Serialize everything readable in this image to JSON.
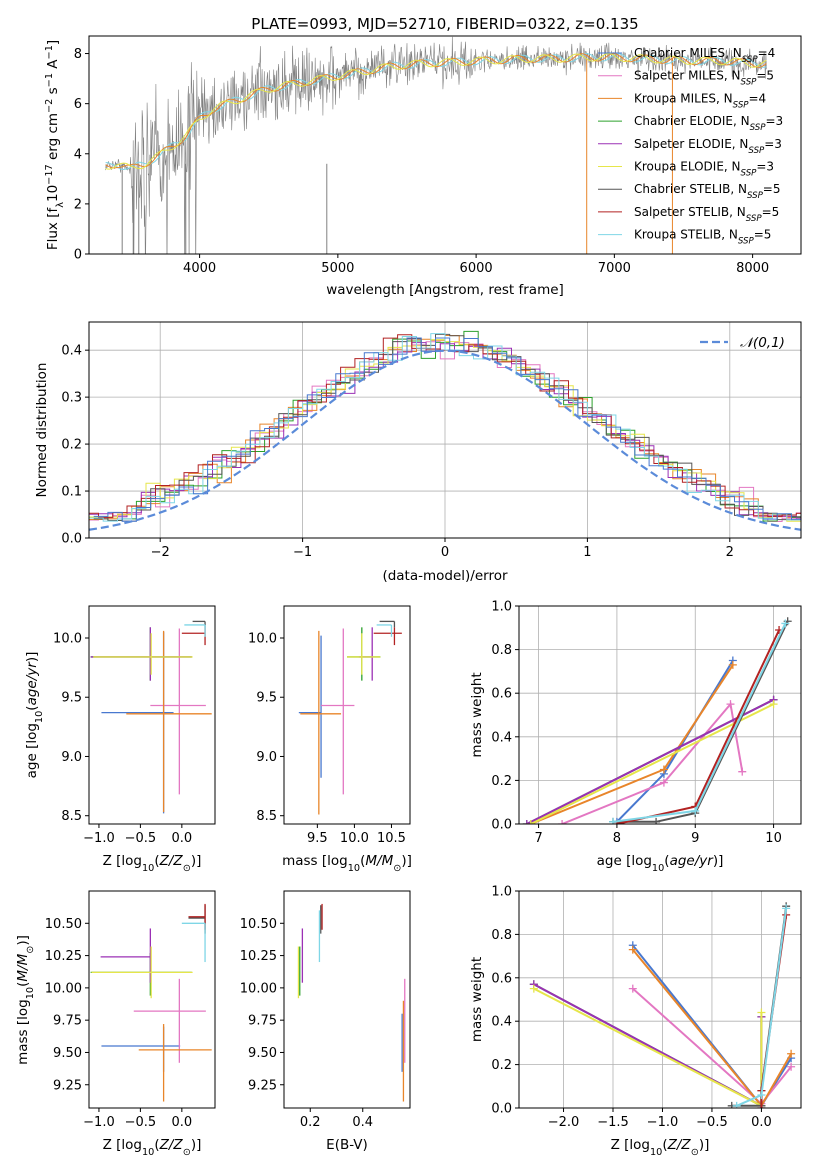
{
  "chart_data": [
    {
      "id": "spectrum",
      "type": "line",
      "title": "PLATE=0993, MJD=52710, FIBERID=0322, z=0.135",
      "xlabel": "wavelength [Angstrom, rest frame]",
      "ylabel": "Flux [f_λ10^-17 erg cm^-2 s^-1 A^-1]",
      "xlim": [
        3200,
        8350
      ],
      "ylim": [
        0,
        8.7
      ],
      "xticks": [
        4000,
        5000,
        6000,
        7000,
        8000
      ],
      "yticks": [
        0,
        2,
        4,
        6,
        8
      ],
      "observed": {
        "x": [
          3320,
          3400,
          3500,
          3600,
          3700,
          3800,
          3900,
          4000,
          4100,
          4200,
          4300,
          4400,
          4500,
          4600,
          4700,
          4800,
          4900,
          5000,
          5200,
          5400,
          5600,
          5800,
          6000,
          6200,
          6400,
          6600,
          6800,
          7000,
          7200,
          7400,
          7600,
          7800,
          8000,
          8100
        ],
        "y": [
          3.5,
          3.6,
          3.4,
          3.6,
          3.9,
          4.3,
          4.7,
          5.4,
          5.8,
          6.0,
          6.2,
          6.4,
          6.6,
          6.7,
          6.8,
          6.9,
          7.0,
          7.1,
          7.3,
          7.5,
          7.6,
          7.65,
          7.7,
          7.75,
          7.8,
          7.8,
          7.85,
          7.85,
          7.8,
          7.75,
          7.7,
          7.7,
          7.6,
          7.6
        ]
      },
      "series": [
        {
          "name": "Chabrier MILES, N_SSP=4",
          "color": "#4878cf"
        },
        {
          "name": "Salpeter MILES, N_SSP=5",
          "color": "#e377c2"
        },
        {
          "name": "Kroupa MILES, N_SSP=4",
          "color": "#e8852a"
        },
        {
          "name": "Chabrier ELODIE, N_SSP=3",
          "color": "#2ca02c"
        },
        {
          "name": "Salpeter ELODIE, N_SSP=3",
          "color": "#9b30b5"
        },
        {
          "name": "Kroupa ELODIE, N_SSP=3",
          "color": "#e6e64a"
        },
        {
          "name": "Chabrier STELIB, N_SSP=5",
          "color": "#555555"
        },
        {
          "name": "Salpeter STELIB, N_SSP=5",
          "color": "#b22222"
        },
        {
          "name": "Kroupa STELIB, N_SSP=5",
          "color": "#7fd6e6"
        }
      ],
      "legend_position": "right"
    },
    {
      "id": "residuals",
      "type": "histogram",
      "xlabel": "(data-model)/error",
      "ylabel": "Normed distribution",
      "xlim": [
        -2.5,
        2.5
      ],
      "ylim": [
        0,
        0.46
      ],
      "xticks": [
        -2,
        -1,
        0,
        1,
        2
      ],
      "yticks": [
        0.0,
        0.1,
        0.2,
        0.3,
        0.4
      ],
      "bin_width": 0.1,
      "curve_label": "𝒩(0,1)",
      "curve_color": "#5b8bd9",
      "legend_position": "top-right",
      "grid": true
    },
    {
      "id": "age-vs-Z",
      "type": "errorbar",
      "xlabel": "Z [log10(Z/Z⊙)]",
      "ylabel": "age  [log10(age/yr)]",
      "xlim": [
        -1.12,
        0.4
      ],
      "ylim": [
        8.43,
        10.27
      ],
      "xticks": [
        -1.0,
        -0.5,
        0.0
      ],
      "yticks": [
        8.5,
        9.0,
        9.5,
        10.0
      ],
      "points": [
        {
          "x": -0.22,
          "y": 9.37,
          "xerr": [
            0.75,
            0.12
          ],
          "yerr": [
            0.85,
            0.68
          ],
          "c": 0
        },
        {
          "x": -0.03,
          "y": 9.43,
          "xerr": [
            0.35,
            0.32
          ],
          "yerr": [
            0.75,
            0.65
          ],
          "c": 1
        },
        {
          "x": -0.22,
          "y": 9.36,
          "xerr": [
            0.45,
            0.58
          ],
          "yerr": [
            0.83,
            0.7
          ],
          "c": 2
        },
        {
          "x": -0.38,
          "y": 9.84,
          "xerr": [
            0.72,
            0.5
          ],
          "yerr": [
            0.2,
            0.25
          ],
          "c": 3
        },
        {
          "x": -0.38,
          "y": 9.84,
          "xerr": [
            0.72,
            0.5
          ],
          "yerr": [
            0.2,
            0.25
          ],
          "c": 4
        },
        {
          "x": -0.37,
          "y": 9.84,
          "xerr": [
            0.7,
            0.5
          ],
          "yerr": [
            0.15,
            0.2
          ],
          "c": 5
        },
        {
          "x": 0.28,
          "y": 10.14,
          "xerr": [
            0.15,
            0.0
          ],
          "yerr": [
            0.05,
            0.0
          ],
          "c": 6
        },
        {
          "x": 0.28,
          "y": 10.04,
          "xerr": [
            0.28,
            0.0
          ],
          "yerr": [
            0.1,
            0.05
          ],
          "c": 7
        },
        {
          "x": 0.28,
          "y": 10.11,
          "xerr": [
            0.25,
            0.0
          ],
          "yerr": [
            0.1,
            0.0
          ],
          "c": 8
        }
      ]
    },
    {
      "id": "age-vs-mass",
      "type": "errorbar",
      "xlabel": "mass [log10(M/M⊙)]",
      "ylabel": "",
      "xlim": [
        9.05,
        10.75
      ],
      "ylim": [
        8.43,
        10.27
      ],
      "xticks": [
        9.5,
        10.0,
        10.5
      ],
      "yticks": [
        8.5,
        9.0,
        9.5,
        10.0
      ],
      "points": [
        {
          "x": 9.55,
          "y": 9.37,
          "xerr": [
            0.3,
            0.0
          ],
          "yerr": [
            0.55,
            0.65
          ],
          "c": 0
        },
        {
          "x": 9.85,
          "y": 9.43,
          "xerr": [
            0.3,
            0.15
          ],
          "yerr": [
            0.75,
            0.65
          ],
          "c": 1
        },
        {
          "x": 9.52,
          "y": 9.36,
          "xerr": [
            0.25,
            0.3
          ],
          "yerr": [
            0.85,
            0.7
          ],
          "c": 2
        },
        {
          "x": 10.1,
          "y": 9.84,
          "xerr": [
            0.2,
            0.25
          ],
          "yerr": [
            0.2,
            0.25
          ],
          "c": 3
        },
        {
          "x": 10.24,
          "y": 9.84,
          "xerr": [
            0.18,
            0.0
          ],
          "yerr": [
            0.2,
            0.25
          ],
          "c": 4
        },
        {
          "x": 10.1,
          "y": 9.84,
          "xerr": [
            0.2,
            0.25
          ],
          "yerr": [
            0.15,
            0.2
          ],
          "c": 5
        },
        {
          "x": 10.54,
          "y": 10.14,
          "xerr": [
            0.2,
            0.0
          ],
          "yerr": [
            0.05,
            0.0
          ],
          "c": 6
        },
        {
          "x": 10.54,
          "y": 10.04,
          "xerr": [
            0.28,
            0.1
          ],
          "yerr": [
            0.1,
            0.05
          ],
          "c": 7
        },
        {
          "x": 10.5,
          "y": 10.11,
          "xerr": [
            0.2,
            0.0
          ],
          "yerr": [
            0.1,
            0.0
          ],
          "c": 8
        }
      ]
    },
    {
      "id": "weight-vs-age",
      "type": "line",
      "xlabel": "age  [log10(age/yr)]",
      "ylabel": "mass weight",
      "xlim": [
        6.75,
        10.35
      ],
      "ylim": [
        0,
        1.0
      ],
      "xticks": [
        7,
        8,
        9,
        10
      ],
      "yticks": [
        0.0,
        0.2,
        0.4,
        0.6,
        0.8,
        1.0
      ],
      "grid": true,
      "series": [
        {
          "c": 0,
          "x": [
            8.0,
            8.6,
            9.48
          ],
          "y": [
            0.01,
            0.23,
            0.75
          ]
        },
        {
          "c": 1,
          "x": [
            7.3,
            8.6,
            9.45,
            9.6
          ],
          "y": [
            0.0,
            0.19,
            0.55,
            0.24
          ]
        },
        {
          "c": 2,
          "x": [
            6.9,
            8.6,
            9.48
          ],
          "y": [
            0.0,
            0.25,
            0.73
          ]
        },
        {
          "c": 3,
          "x": [
            6.85,
            10.0
          ],
          "y": [
            0.0,
            0.57
          ]
        },
        {
          "c": 4,
          "x": [
            6.85,
            10.0
          ],
          "y": [
            0.0,
            0.57
          ]
        },
        {
          "c": 5,
          "x": [
            6.9,
            10.0
          ],
          "y": [
            0.0,
            0.55
          ]
        },
        {
          "c": 6,
          "x": [
            7.95,
            8.5,
            9.0,
            10.18
          ],
          "y": [
            0.01,
            0.01,
            0.05,
            0.93
          ]
        },
        {
          "c": 7,
          "x": [
            8.0,
            9.0,
            10.07
          ],
          "y": [
            0.0,
            0.08,
            0.89
          ]
        },
        {
          "c": 8,
          "x": [
            7.95,
            9.0,
            10.15
          ],
          "y": [
            0.01,
            0.06,
            0.92
          ]
        }
      ]
    },
    {
      "id": "mass-vs-Z",
      "type": "errorbar",
      "xlabel": "Z [log10(Z/Z⊙)]",
      "ylabel": "mass [log10(M/M⊙)]",
      "xlim": [
        -1.12,
        0.4
      ],
      "ylim": [
        9.07,
        10.75
      ],
      "xticks": [
        -1.0,
        -0.5,
        0.0
      ],
      "yticks": [
        9.25,
        9.5,
        9.75,
        10.0,
        10.25,
        10.5
      ],
      "points": [
        {
          "x": -0.22,
          "y": 9.55,
          "xerr": [
            0.75,
            0.2
          ],
          "yerr": [
            0.2,
            0.15
          ],
          "c": 0
        },
        {
          "x": -0.03,
          "y": 9.82,
          "xerr": [
            0.55,
            0.32
          ],
          "yerr": [
            0.4,
            0.25
          ],
          "c": 1
        },
        {
          "x": -0.22,
          "y": 9.52,
          "xerr": [
            0.3,
            0.58
          ],
          "yerr": [
            0.4,
            0.2
          ],
          "c": 2
        },
        {
          "x": -0.38,
          "y": 10.12,
          "xerr": [
            0.72,
            0.5
          ],
          "yerr": [
            0.18,
            0.15
          ],
          "c": 3
        },
        {
          "x": -0.38,
          "y": 10.24,
          "xerr": [
            0.6,
            0.0
          ],
          "yerr": [
            0.2,
            0.22
          ],
          "c": 4
        },
        {
          "x": -0.37,
          "y": 10.12,
          "xerr": [
            0.72,
            0.5
          ],
          "yerr": [
            0.2,
            0.2
          ],
          "c": 5
        },
        {
          "x": 0.28,
          "y": 10.54,
          "xerr": [
            0.2,
            0.0
          ],
          "yerr": [
            0.12,
            0.1
          ],
          "c": 6
        },
        {
          "x": 0.28,
          "y": 10.55,
          "xerr": [
            0.2,
            0.0
          ],
          "yerr": [
            0.1,
            0.1
          ],
          "c": 7
        },
        {
          "x": 0.28,
          "y": 10.5,
          "xerr": [
            0.28,
            0.0
          ],
          "yerr": [
            0.3,
            0.0
          ],
          "c": 8
        }
      ]
    },
    {
      "id": "mass-vs-EBV",
      "type": "errorbar",
      "xlabel": "E(B-V)",
      "ylabel": "",
      "xlim": [
        0.1,
        0.58
      ],
      "ylim": [
        9.07,
        10.75
      ],
      "xticks": [
        0.2,
        0.4
      ],
      "yticks": [
        9.25,
        9.5,
        9.75,
        10.0,
        10.25,
        10.5
      ],
      "points": [
        {
          "x": 0.55,
          "y": 9.55,
          "xerr": [
            0,
            0
          ],
          "yerr": [
            0.2,
            0.25
          ],
          "c": 0
        },
        {
          "x": 0.56,
          "y": 9.82,
          "xerr": [
            0,
            0
          ],
          "yerr": [
            0.4,
            0.25
          ],
          "c": 1
        },
        {
          "x": 0.555,
          "y": 9.52,
          "xerr": [
            0,
            0
          ],
          "yerr": [
            0.4,
            0.38
          ],
          "c": 2
        },
        {
          "x": 0.16,
          "y": 10.12,
          "xerr": [
            0,
            0
          ],
          "yerr": [
            0.18,
            0.2
          ],
          "c": 3
        },
        {
          "x": 0.17,
          "y": 10.24,
          "xerr": [
            0,
            0
          ],
          "yerr": [
            0.2,
            0.22
          ],
          "c": 4
        },
        {
          "x": 0.155,
          "y": 10.12,
          "xerr": [
            0,
            0
          ],
          "yerr": [
            0.2,
            0.2
          ],
          "c": 5
        },
        {
          "x": 0.24,
          "y": 10.54,
          "xerr": [
            0,
            0
          ],
          "yerr": [
            0.12,
            0.1
          ],
          "c": 6
        },
        {
          "x": 0.245,
          "y": 10.55,
          "xerr": [
            0,
            0
          ],
          "yerr": [
            0.1,
            0.1
          ],
          "c": 7
        },
        {
          "x": 0.235,
          "y": 10.5,
          "xerr": [
            0,
            0
          ],
          "yerr": [
            0.3,
            0.1
          ],
          "c": 8
        }
      ]
    },
    {
      "id": "weight-vs-Z",
      "type": "line",
      "xlabel": "Z [log10(Z/Z⊙)]",
      "ylabel": "mass weight",
      "xlim": [
        -2.45,
        0.4
      ],
      "ylim": [
        0,
        1.0
      ],
      "xticks": [
        -2.0,
        -1.5,
        -1.0,
        -0.5,
        0.0
      ],
      "yticks": [
        0.0,
        0.2,
        0.4,
        0.6,
        0.8,
        1.0
      ],
      "grid": true,
      "series": [
        {
          "c": 0,
          "x": [
            -1.3,
            0.0,
            0.3
          ],
          "y": [
            0.75,
            0.01,
            0.23
          ]
        },
        {
          "c": 1,
          "x": [
            -1.3,
            0.0,
            0.3
          ],
          "y": [
            0.55,
            0.02,
            0.19
          ]
        },
        {
          "c": 2,
          "x": [
            -1.3,
            0.0,
            0.3
          ],
          "y": [
            0.73,
            0.01,
            0.25
          ]
        },
        {
          "c": 3,
          "x": [
            -2.3,
            0.0,
            0.0
          ],
          "y": [
            0.57,
            0.01,
            0.42
          ]
        },
        {
          "c": 4,
          "x": [
            -2.3,
            0.0,
            0.0
          ],
          "y": [
            0.57,
            0.01,
            0.42
          ]
        },
        {
          "c": 5,
          "x": [
            -2.3,
            0.0,
            0.0
          ],
          "y": [
            0.55,
            0.01,
            0.44
          ]
        },
        {
          "c": 6,
          "x": [
            -0.3,
            0.0,
            0.0,
            0.25
          ],
          "y": [
            0.01,
            0.01,
            0.08,
            0.93
          ]
        },
        {
          "c": 7,
          "x": [
            0.0,
            0.0,
            0.25
          ],
          "y": [
            0.0,
            0.08,
            0.89
          ]
        },
        {
          "c": 8,
          "x": [
            -0.25,
            0.0,
            0.25
          ],
          "y": [
            0.01,
            0.06,
            0.92
          ]
        }
      ]
    }
  ]
}
